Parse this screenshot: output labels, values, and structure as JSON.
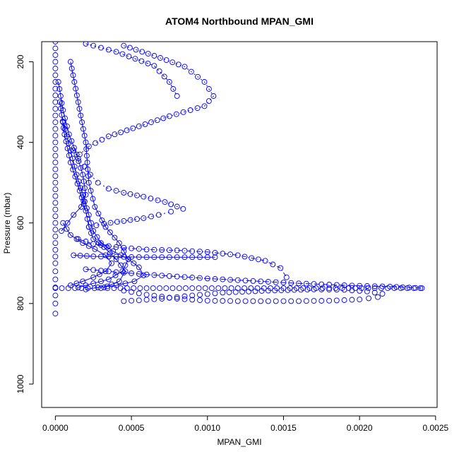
{
  "chart_data": {
    "type": "scatter",
    "title": "ATOM4 Northbound MPAN_GMI",
    "xlabel": "MPAN_GMI",
    "ylabel": "Pressure (mbar)",
    "xlim": [
      -9e-05,
      0.00251
    ],
    "ylim": [
      1058,
      150
    ],
    "y_reversed": true,
    "x_ticks": [
      {
        "value": 0,
        "label": "0.0000"
      },
      {
        "value": 0.0005,
        "label": "0.0005"
      },
      {
        "value": 0.001,
        "label": "0.0010"
      },
      {
        "value": 0.0015,
        "label": "0.0015"
      },
      {
        "value": 0.002,
        "label": "0.0020"
      },
      {
        "value": 0.0025,
        "label": "0.0025"
      }
    ],
    "y_ticks": [
      {
        "value": 200,
        "label": "200"
      },
      {
        "value": 400,
        "label": "400"
      },
      {
        "value": 600,
        "label": "600"
      },
      {
        "value": 800,
        "label": "800"
      },
      {
        "value": 1000,
        "label": "1000"
      }
    ],
    "grid": false,
    "marker": "open-circle",
    "color": "#0000ff",
    "series": [
      {
        "x": [
          0.0,
          0.0,
          0.0,
          0.0,
          0.0,
          0.0,
          0.0,
          0.0
        ],
        "y": [
          150,
          300,
          450,
          600,
          700,
          760,
          800,
          825
        ],
        "line": false
      },
      {
        "x": [
          0.00045,
          0.00065,
          0.00085,
          0.00098,
          0.00104,
          0.00098,
          0.00075,
          0.00055,
          0.00035,
          0.00022,
          0.00016
        ],
        "y": [
          160,
          185,
          212,
          250,
          285,
          310,
          335,
          360,
          385,
          410,
          430
        ],
        "line": true,
        "dash": "2 4"
      },
      {
        "x": [
          0.0002,
          0.0004,
          0.00065,
          0.00075,
          0.0008
        ],
        "y": [
          155,
          175,
          210,
          250,
          285
        ],
        "line": true,
        "dash": "3 3"
      },
      {
        "x": [
          0.00012,
          0.00015,
          0.00019,
          0.00023,
          0.00028,
          0.00035,
          0.00045,
          0.00058,
          0.00072,
          0.00084
        ],
        "y": [
          420,
          440,
          460,
          480,
          500,
          515,
          525,
          535,
          548,
          565
        ],
        "line": true,
        "dash": "2 4"
      },
      {
        "x": [
          0.00022,
          0.00032,
          0.00045,
          0.00058,
          0.00068,
          0.00076
        ],
        "y": [
          610,
          602,
          595,
          588,
          580,
          572
        ],
        "line": true,
        "dash": "2 4"
      },
      {
        "x": [
          0.00015,
          0.00025,
          0.0004,
          0.0006,
          0.0008,
          0.001,
          0.0012,
          0.00138,
          0.00148,
          0.00152
        ],
        "y": [
          640,
          652,
          660,
          666,
          668,
          672,
          680,
          694,
          712,
          735
        ],
        "line": true,
        "dash": "6 3 1 3"
      },
      {
        "x": [
          0.00012,
          0.00025,
          0.0004,
          0.0006,
          0.0008,
          0.001,
          0.00105
        ],
        "y": [
          680,
          683,
          684,
          685,
          685,
          685,
          685
        ],
        "line": true,
        "dash": ""
      },
      {
        "x": [
          0.0002,
          0.0004,
          0.0006,
          0.0008,
          0.001,
          0.0012,
          0.0014,
          0.0016,
          0.0018,
          0.002,
          0.0022,
          0.00241
        ],
        "y": [
          715,
          722,
          728,
          733,
          738,
          742,
          746,
          750,
          753,
          756,
          758,
          762
        ],
        "line": true,
        "dash": "8 4"
      },
      {
        "x": [
          0.0,
          0.0003,
          0.0006,
          0.0009,
          0.0012,
          0.0015,
          0.0018,
          0.0021,
          0.0024
        ],
        "y": [
          762,
          762,
          762,
          762,
          762,
          762,
          762,
          762,
          762
        ],
        "line": false
      },
      {
        "x": [
          0.00045,
          0.0006,
          0.0008,
          0.001,
          0.0012,
          0.0014,
          0.0016,
          0.0018,
          0.002,
          0.00212,
          0.00215,
          0.00205,
          0.0019,
          0.0017,
          0.0014,
          0.0011,
          0.0009,
          0.0007,
          0.00055,
          0.00045
        ],
        "y": [
          768,
          778,
          788,
          793,
          794,
          794,
          794,
          793,
          790,
          784,
          776,
          770,
          766,
          765,
          768,
          773,
          780,
          788,
          792,
          794
        ],
        "line": false
      },
      {
        "x": [
          5e-05,
          0.0001,
          0.00014,
          0.00018,
          0.00022,
          0.00025,
          0.0003,
          0.00038,
          0.00048,
          0.00055,
          0.00058,
          0.00052,
          0.0004,
          0.00028,
          0.0002
        ],
        "y": [
          350,
          420,
          480,
          530,
          580,
          620,
          650,
          670,
          690,
          710,
          730,
          745,
          755,
          760,
          765
        ],
        "line": true,
        "dash": ""
      },
      {
        "x": [
          0.0001,
          0.00015,
          0.0002,
          0.00022,
          0.00026,
          0.00033,
          0.00042,
          0.00048,
          0.00044,
          0.00035,
          0.00025,
          0.00015
        ],
        "y": [
          200,
          300,
          400,
          500,
          560,
          610,
          650,
          690,
          720,
          740,
          750,
          760
        ],
        "line": true,
        "dash": ""
      },
      {
        "x": [
          3e-05,
          6e-05,
          0.0001,
          0.00016,
          0.0002,
          0.00022,
          0.00025,
          0.00032,
          0.0004,
          0.00046,
          0.00042,
          0.00032
        ],
        "y": [
          300,
          380,
          450,
          520,
          570,
          610,
          640,
          660,
          690,
          720,
          745,
          760
        ],
        "line": true,
        "dash": ""
      },
      {
        "x": [
          5e-05,
          0.0001,
          0.00018,
          0.00026,
          0.00033,
          0.00037,
          0.00033,
          0.00025,
          0.00018,
          0.0001
        ],
        "y": [
          600,
          630,
          650,
          665,
          680,
          700,
          720,
          735,
          745,
          755
        ],
        "line": true,
        "dash": ""
      },
      {
        "x": [
          2e-05,
          5e-05,
          9e-05,
          0.00014,
          0.00018,
          0.0002,
          0.00017,
          0.00012,
          8e-05,
          4e-05
        ],
        "y": [
          250,
          320,
          380,
          430,
          480,
          530,
          560,
          580,
          600,
          620
        ],
        "line": true,
        "dash": ""
      }
    ]
  }
}
